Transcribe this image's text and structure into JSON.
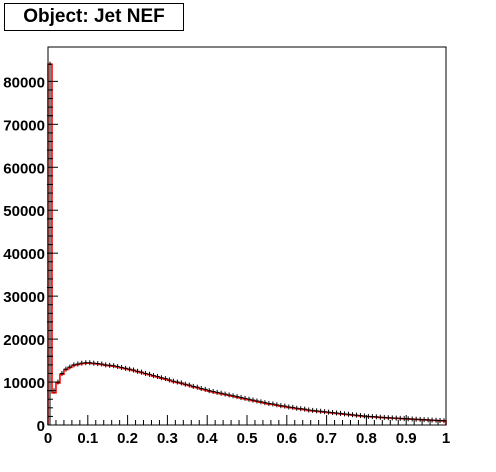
{
  "chart_data": {
    "type": "histogram",
    "title": "Object: Jet NEF",
    "xlabel": "",
    "ylabel": "",
    "xlim": [
      0,
      1
    ],
    "ylim": [
      0,
      88000
    ],
    "grid": false,
    "x_ticks": [
      "0",
      "0.1",
      "0.2",
      "0.3",
      "0.4",
      "0.5",
      "0.6",
      "0.7",
      "0.8",
      "0.9",
      "1"
    ],
    "y_ticks": [
      "0",
      "10000",
      "20000",
      "30000",
      "40000",
      "50000",
      "60000",
      "70000",
      "80000"
    ],
    "y_tick_values": [
      0,
      10000,
      20000,
      30000,
      40000,
      50000,
      60000,
      70000,
      80000
    ],
    "bin_width": 0.01,
    "series": [
      {
        "color": "#000000",
        "style": "error-bars",
        "values": [
          84000,
          8000,
          10000,
          12000,
          13000,
          13500,
          14000,
          14200,
          14400,
          14500,
          14500,
          14400,
          14300,
          14200,
          14000,
          13900,
          13800,
          13600,
          13400,
          13200,
          13000,
          12800,
          12500,
          12300,
          12000,
          11800,
          11500,
          11300,
          11000,
          10800,
          10500,
          10200,
          10000,
          9800,
          9500,
          9300,
          9000,
          8800,
          8500,
          8300,
          8000,
          7800,
          7600,
          7400,
          7200,
          7000,
          6800,
          6600,
          6400,
          6200,
          6000,
          5800,
          5600,
          5400,
          5200,
          5000,
          4900,
          4700,
          4500,
          4400,
          4200,
          4100,
          3900,
          3800,
          3700,
          3500,
          3400,
          3300,
          3200,
          3100,
          3000,
          2900,
          2800,
          2700,
          2600,
          2500,
          2400,
          2300,
          2200,
          2100,
          2000,
          1950,
          1900,
          1800,
          1750,
          1700,
          1650,
          1600,
          1550,
          1500,
          1450,
          1400,
          1350,
          1300,
          1250,
          1200,
          1150,
          1100,
          1050,
          1000
        ]
      },
      {
        "color": "#ff0000",
        "style": "step",
        "values": [
          84000,
          7500,
          9800,
          11800,
          12900,
          13400,
          13900,
          14100,
          14300,
          14400,
          14400,
          14300,
          14200,
          14100,
          13900,
          13800,
          13700,
          13500,
          13300,
          13100,
          12900,
          12700,
          12400,
          12200,
          11900,
          11700,
          11400,
          11200,
          10900,
          10700,
          10400,
          10100,
          9900,
          9700,
          9400,
          9200,
          8900,
          8700,
          8400,
          8200,
          7900,
          7700,
          7500,
          7300,
          7100,
          6900,
          6700,
          6500,
          6300,
          6100,
          5900,
          5700,
          5500,
          5300,
          5100,
          4900,
          4800,
          4600,
          4400,
          4300,
          4100,
          4000,
          3800,
          3700,
          3600,
          3400,
          3300,
          3200,
          3100,
          3000,
          2900,
          2800,
          2700,
          2600,
          2500,
          2400,
          2300,
          2200,
          2100,
          2000,
          1950,
          1900,
          1850,
          1750,
          1700,
          1650,
          1600,
          1550,
          1500,
          1450,
          1400,
          1350,
          1300,
          1250,
          1200,
          1150,
          1100,
          1050,
          1000,
          950
        ]
      }
    ]
  }
}
